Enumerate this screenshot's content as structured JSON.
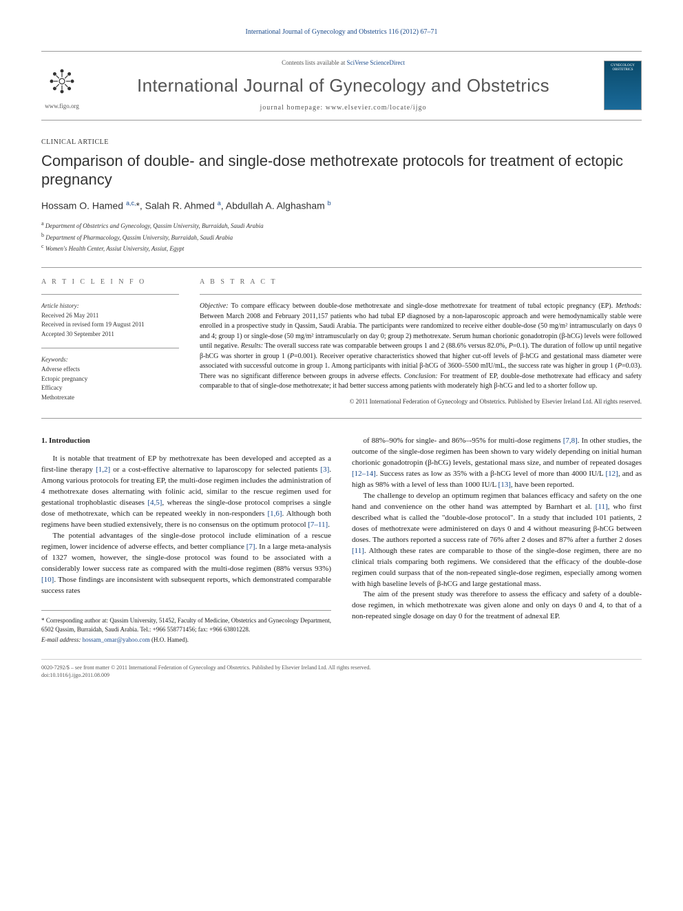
{
  "journal_ref": "International Journal of Gynecology and Obstetrics 116 (2012) 67–71",
  "masthead": {
    "figo_url": "www.figo.org",
    "contents_prefix": "Contents lists available at ",
    "contents_link": "SciVerse ScienceDirect",
    "journal_name": "International Journal of Gynecology and Obstetrics",
    "homepage_prefix": "journal homepage: ",
    "homepage_url": "www.elsevier.com/locate/ijgo",
    "cover_text_top": "GYNECOLOGY",
    "cover_text_bot": "OBSTETRICS"
  },
  "article_type": "CLINICAL ARTICLE",
  "title": "Comparison of double- and single-dose methotrexate protocols for treatment of ectopic pregnancy",
  "authors_html": "Hossam O. Hamed <sup>a,c,</sup>*, Salah R. Ahmed <sup>a</sup>, Abdullah A. Alghasham <sup>b</sup>",
  "affiliations": [
    {
      "sup": "a",
      "text": "Department of Obstetrics and Gynecology, Qassim University, Burraidah, Saudi Arabia"
    },
    {
      "sup": "b",
      "text": "Department of Pharmacology, Qassim University, Burraidah, Saudi Arabia"
    },
    {
      "sup": "c",
      "text": "Women's Health Center, Assiut University, Assiut, Egypt"
    }
  ],
  "info": {
    "label": "A R T I C L E   I N F O",
    "history_title": "Article history:",
    "history": [
      "Received 26 May 2011",
      "Received in revised form 19 August 2011",
      "Accepted 30 September 2011"
    ],
    "keywords_title": "Keywords:",
    "keywords": [
      "Adverse effects",
      "Ectopic pregnancy",
      "Efficacy",
      "Methotrexate"
    ]
  },
  "abstract": {
    "label": "A B S T R A C T",
    "text_html": "<i>Objective:</i> To compare efficacy between double-dose methotrexate and single-dose methotrexate for treatment of tubal ectopic pregnancy (EP). <i>Methods:</i> Between March 2008 and February 2011,157 patients who had tubal EP diagnosed by a non-laparoscopic approach and were hemodynamically stable were enrolled in a prospective study in Qassim, Saudi Arabia. The participants were randomized to receive either double-dose (50 mg/m² intramuscularly on days 0 and 4; group 1) or single-dose (50 mg/m² intramuscularly on day 0; group 2) methotrexate. Serum human chorionic gonadotropin (β-hCG) levels were followed until negative. <i>Results:</i> The overall success rate was comparable between groups 1 and 2 (88.6% versus 82.0%, <i>P</i>=0.1). The duration of follow up until negative β-hCG was shorter in group 1 (<i>P</i>=0.001). Receiver operative characteristics showed that higher cut-off levels of β-hCG and gestational mass diameter were associated with successful outcome in group 1. Among participants with initial β-hCG of 3600–5500 mIU/mL, the success rate was higher in group 1 (<i>P</i>=0.03). There was no significant difference between groups in adverse effects. <i>Conclusion:</i> For treatment of EP, double-dose methotrexate had efficacy and safety comparable to that of single-dose methotrexate; it had better success among patients with moderately high β-hCG and led to a shorter follow up.",
    "copyright": "© 2011 International Federation of Gynecology and Obstetrics. Published by Elsevier Ireland Ltd. All rights reserved."
  },
  "body": {
    "heading": "1. Introduction",
    "left_paras_html": [
      "It is notable that treatment of EP by methotrexate has been developed and accepted as a first-line therapy <span class='ref-link'>[1,2]</span> or a cost-effective alternative to laparoscopy for selected patients <span class='ref-link'>[3]</span>. Among various protocols for treating EP, the multi-dose regimen includes the administration of 4 methotrexate doses alternating with folinic acid, similar to the rescue regimen used for gestational trophoblastic diseases <span class='ref-link'>[4,5]</span>, whereas the single-dose protocol comprises a single dose of methotrexate, which can be repeated weekly in non-responders <span class='ref-link'>[1,6]</span>. Although both regimens have been studied extensively, there is no consensus on the optimum protocol <span class='ref-link'>[7–11]</span>.",
      "The potential advantages of the single-dose protocol include elimination of a rescue regimen, lower incidence of adverse effects, and better compliance <span class='ref-link'>[7]</span>. In a large meta-analysis of 1327 women, however, the single-dose protocol was found to be associated with a considerably lower success rate as compared with the multi-dose regimen (88% versus 93%) <span class='ref-link'>[10]</span>. Those findings are inconsistent with subsequent reports, which demonstrated comparable success rates"
    ],
    "right_paras_html": [
      "of 88%–90% for single- and 86%–-95% for multi-dose regimens <span class='ref-link'>[7,8]</span>. In other studies, the outcome of the single-dose regimen has been shown to vary widely depending on initial human chorionic gonadotropin (β-hCG) levels, gestational mass size, and number of repeated dosages <span class='ref-link'>[12–14]</span>. Success rates as low as 35% with a β-hCG level of more than 4000 IU/L <span class='ref-link'>[12]</span>, and as high as 98% with a level of less than 1000 IU/L <span class='ref-link'>[13]</span>, have been reported.",
      "The challenge to develop an optimum regimen that balances efficacy and safety on the one hand and convenience on the other hand was attempted by Barnhart et al. <span class='ref-link'>[11]</span>, who first described what is called the \"double-dose protocol\". In a study that included 101 patients, 2 doses of methotrexate were administered on days 0 and 4 without measuring β-hCG between doses. The authors reported a success rate of 76% after 2 doses and 87% after a further 2 doses <span class='ref-link'>[11]</span>. Although these rates are comparable to those of the single-dose regimen, there are no clinical trials comparing both regimens. We considered that the efficacy of the double-dose regimen could surpass that of the non-repeated single-dose regimen, especially among women with high baseline levels of β-hCG and large gestational mass.",
      "The aim of the present study was therefore to assess the efficacy and safety of a double-dose regimen, in which methotrexate was given alone and only on days 0 and 4, to that of a non-repeated single dosage on day 0 for the treatment of adnexal EP."
    ]
  },
  "correspondence": {
    "star": "*",
    "label": "Corresponding author at:",
    "text": " Qassim University, 51452, Faculty of Medicine, Obstetrics and Gynecology Department, 6502 Qassim, Burraidah, Saudi Arabia. Tel.: +966 558771456; fax: +966 63801228.",
    "email_label": "E-mail address: ",
    "email": "hossam_omar@yahoo.com",
    "email_suffix": " (H.O. Hamed)."
  },
  "footer": {
    "line1": "0020-7292/$ – see front matter © 2011 International Federation of Gynecology and Obstetrics. Published by Elsevier Ireland Ltd. All rights reserved.",
    "line2": "doi:10.1016/j.ijgo.2011.08.009"
  },
  "colors": {
    "link": "#1a4a8a",
    "text": "#1a1a1a",
    "muted": "#555",
    "border": "#999",
    "cover_grad_top": "#0a4a6a",
    "cover_grad_bot": "#1a6a9a"
  },
  "typography": {
    "body_pt": 11,
    "abstract_pt": 10,
    "title_pt": 22,
    "journal_name_pt": 26,
    "info_pt": 9
  }
}
